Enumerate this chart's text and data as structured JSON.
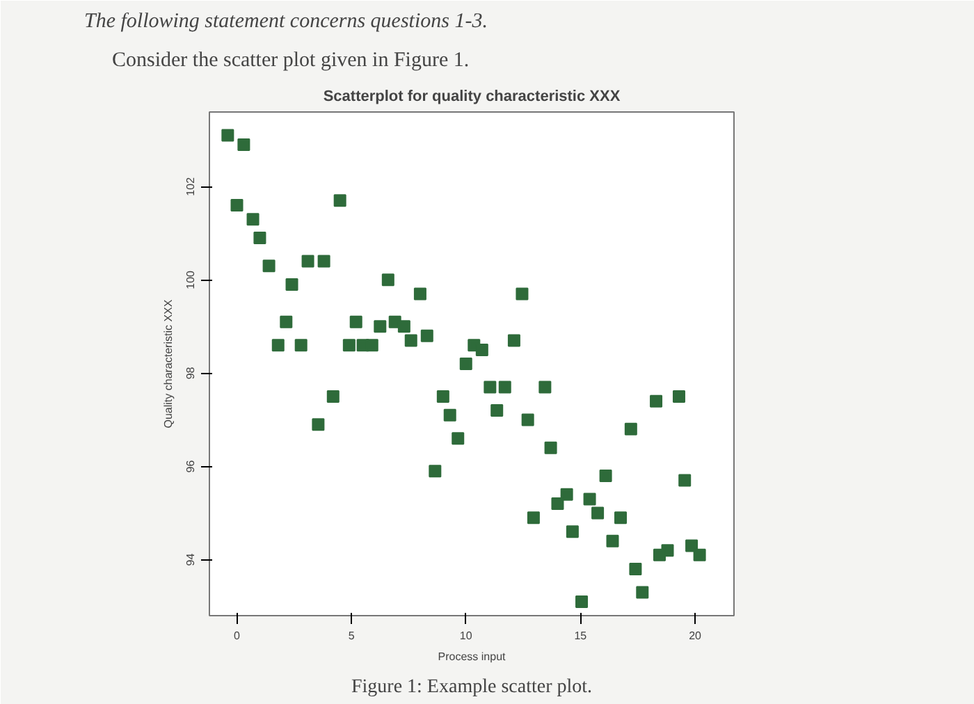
{
  "chart_data": {
    "type": "scatter",
    "title": "Scatterplot for quality characteristic XXX",
    "xlabel": "Process input",
    "ylabel": "Quality characteristic XXX",
    "annotations": [
      "The following statement concerns questions 1-3.",
      "Consider the scatter plot given in Figure 1.",
      "Figure 1: Example scatter plot."
    ],
    "x": [
      -0.4,
      0.3,
      0.0,
      0.7,
      1.0,
      1.4,
      3.1,
      3.8,
      4.5,
      2.4,
      2.15,
      1.8,
      2.8,
      4.9,
      5.2,
      5.5,
      5.9,
      6.25,
      6.6,
      6.9,
      7.3,
      7.6,
      8.0,
      8.3,
      4.2,
      3.55,
      8.65,
      9.0,
      9.3,
      9.65,
      10.35,
      10.7,
      10.0,
      12.45,
      12.1,
      11.05,
      11.7,
      11.35,
      13.45,
      12.7,
      13.7,
      16.1,
      14.4,
      14.0,
      15.4,
      15.75,
      16.75,
      12.95,
      14.65,
      16.4,
      17.2,
      18.3,
      19.3,
      19.55,
      19.85,
      20.2,
      18.8,
      18.45,
      17.4,
      17.7,
      15.05
    ],
    "series": [
      {
        "color": "#2e6b3a",
        "values": [
          103.1,
          102.9,
          101.6,
          101.3,
          100.9,
          100.3,
          100.4,
          100.4,
          101.7,
          99.9,
          99.1,
          98.6,
          98.6,
          98.6,
          99.1,
          98.6,
          98.6,
          99.0,
          100.0,
          99.1,
          99.0,
          98.7,
          99.7,
          98.8,
          97.5,
          96.9,
          95.9,
          97.5,
          97.1,
          96.6,
          98.6,
          98.5,
          98.2,
          99.7,
          98.7,
          97.7,
          97.7,
          97.2,
          97.7,
          97.0,
          96.4,
          95.8,
          95.4,
          95.2,
          95.3,
          95.0,
          94.9,
          94.9,
          94.6,
          94.4,
          96.8,
          97.4,
          97.5,
          95.7,
          94.3,
          94.1,
          94.2,
          94.1,
          93.8,
          93.3,
          93.1
        ]
      }
    ],
    "xlim": [
      -1.2,
      21.7
    ],
    "ylim": [
      92.8,
      103.6
    ],
    "xticks": [
      0,
      5,
      10,
      15,
      20
    ],
    "yticks": [
      94,
      96,
      98,
      100,
      102
    ],
    "marker": "square",
    "grid": false
  }
}
